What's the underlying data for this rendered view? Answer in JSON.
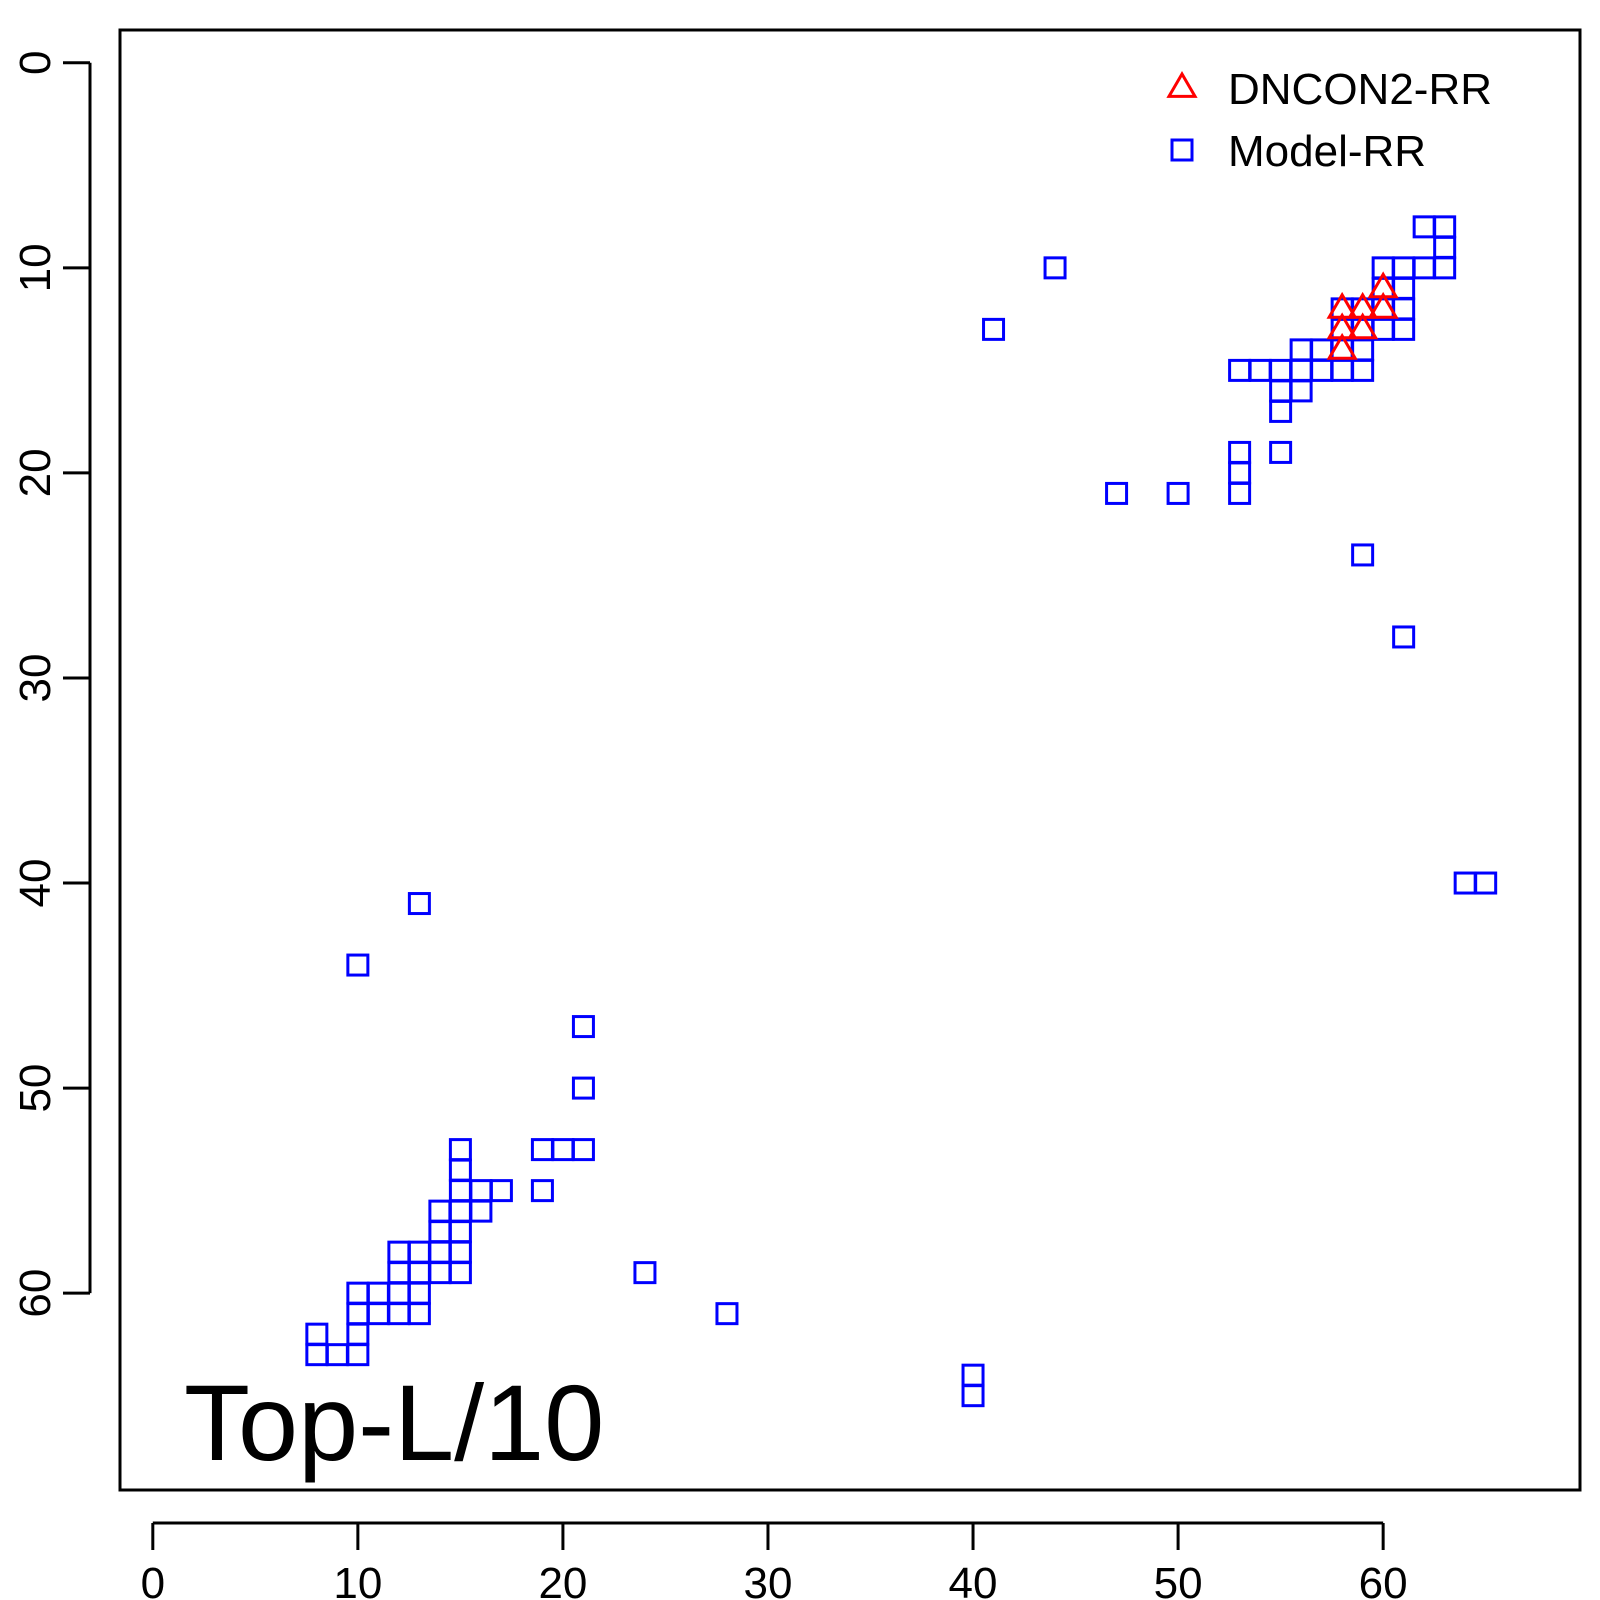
{
  "chart_data": {
    "type": "scatter",
    "title": "",
    "xlabel": "",
    "ylabel": "",
    "xlim": [
      -1.6,
      69.6
    ],
    "ylim": [
      -1.6,
      69.6
    ],
    "y_reversed": true,
    "grid": false,
    "x_ticks": [
      0,
      10,
      20,
      30,
      40,
      50,
      60
    ],
    "y_ticks": [
      0,
      10,
      20,
      30,
      40,
      50,
      60
    ],
    "x_tick_labels": [
      "0",
      "10",
      "20",
      "30",
      "40",
      "50",
      "60"
    ],
    "y_tick_labels": [
      "0",
      "10",
      "20",
      "30",
      "40",
      "50",
      "60"
    ],
    "legend_position": "top-right",
    "annotation": "Top-L/10",
    "series": [
      {
        "name": "DNCON2-RR",
        "marker": "triangle",
        "color": "#ff0000",
        "points": [
          [
            60,
            11
          ],
          [
            58,
            12
          ],
          [
            59,
            12
          ],
          [
            60,
            12
          ],
          [
            58,
            13
          ],
          [
            59,
            13
          ],
          [
            58,
            14
          ]
        ]
      },
      {
        "name": "Model-RR",
        "marker": "square",
        "color": "#0000ff",
        "points": [
          [
            62,
            8
          ],
          [
            63,
            8
          ],
          [
            63,
            9
          ],
          [
            44,
            10
          ],
          [
            60,
            10
          ],
          [
            61,
            10
          ],
          [
            62,
            10
          ],
          [
            63,
            10
          ],
          [
            60,
            11
          ],
          [
            61,
            11
          ],
          [
            58,
            12
          ],
          [
            59,
            12
          ],
          [
            60,
            12
          ],
          [
            61,
            12
          ],
          [
            41,
            13
          ],
          [
            58,
            13
          ],
          [
            59,
            13
          ],
          [
            60,
            13
          ],
          [
            61,
            13
          ],
          [
            56,
            14
          ],
          [
            57,
            14
          ],
          [
            58,
            14
          ],
          [
            59,
            14
          ],
          [
            53,
            15
          ],
          [
            54,
            15
          ],
          [
            55,
            15
          ],
          [
            56,
            15
          ],
          [
            57,
            15
          ],
          [
            58,
            15
          ],
          [
            59,
            15
          ],
          [
            55,
            16
          ],
          [
            56,
            16
          ],
          [
            55,
            17
          ],
          [
            53,
            19
          ],
          [
            55,
            19
          ],
          [
            53,
            20
          ],
          [
            47,
            21
          ],
          [
            50,
            21
          ],
          [
            53,
            21
          ],
          [
            59,
            24
          ],
          [
            61,
            28
          ],
          [
            64,
            40
          ],
          [
            65,
            40
          ],
          [
            13,
            41
          ],
          [
            10,
            44
          ],
          [
            21,
            47
          ],
          [
            21,
            50
          ],
          [
            15,
            53
          ],
          [
            19,
            53
          ],
          [
            20,
            53
          ],
          [
            21,
            53
          ],
          [
            15,
            54
          ],
          [
            15,
            55
          ],
          [
            16,
            55
          ],
          [
            17,
            55
          ],
          [
            19,
            55
          ],
          [
            14,
            56
          ],
          [
            15,
            56
          ],
          [
            16,
            56
          ],
          [
            14,
            57
          ],
          [
            15,
            57
          ],
          [
            12,
            58
          ],
          [
            13,
            58
          ],
          [
            14,
            58
          ],
          [
            15,
            58
          ],
          [
            12,
            59
          ],
          [
            13,
            59
          ],
          [
            14,
            59
          ],
          [
            15,
            59
          ],
          [
            24,
            59
          ],
          [
            10,
            60
          ],
          [
            11,
            60
          ],
          [
            12,
            60
          ],
          [
            13,
            60
          ],
          [
            10,
            61
          ],
          [
            11,
            61
          ],
          [
            12,
            61
          ],
          [
            13,
            61
          ],
          [
            28,
            61
          ],
          [
            8,
            62
          ],
          [
            10,
            62
          ],
          [
            8,
            63
          ],
          [
            9,
            63
          ],
          [
            10,
            63
          ],
          [
            40,
            64
          ],
          [
            40,
            65
          ]
        ]
      }
    ]
  }
}
